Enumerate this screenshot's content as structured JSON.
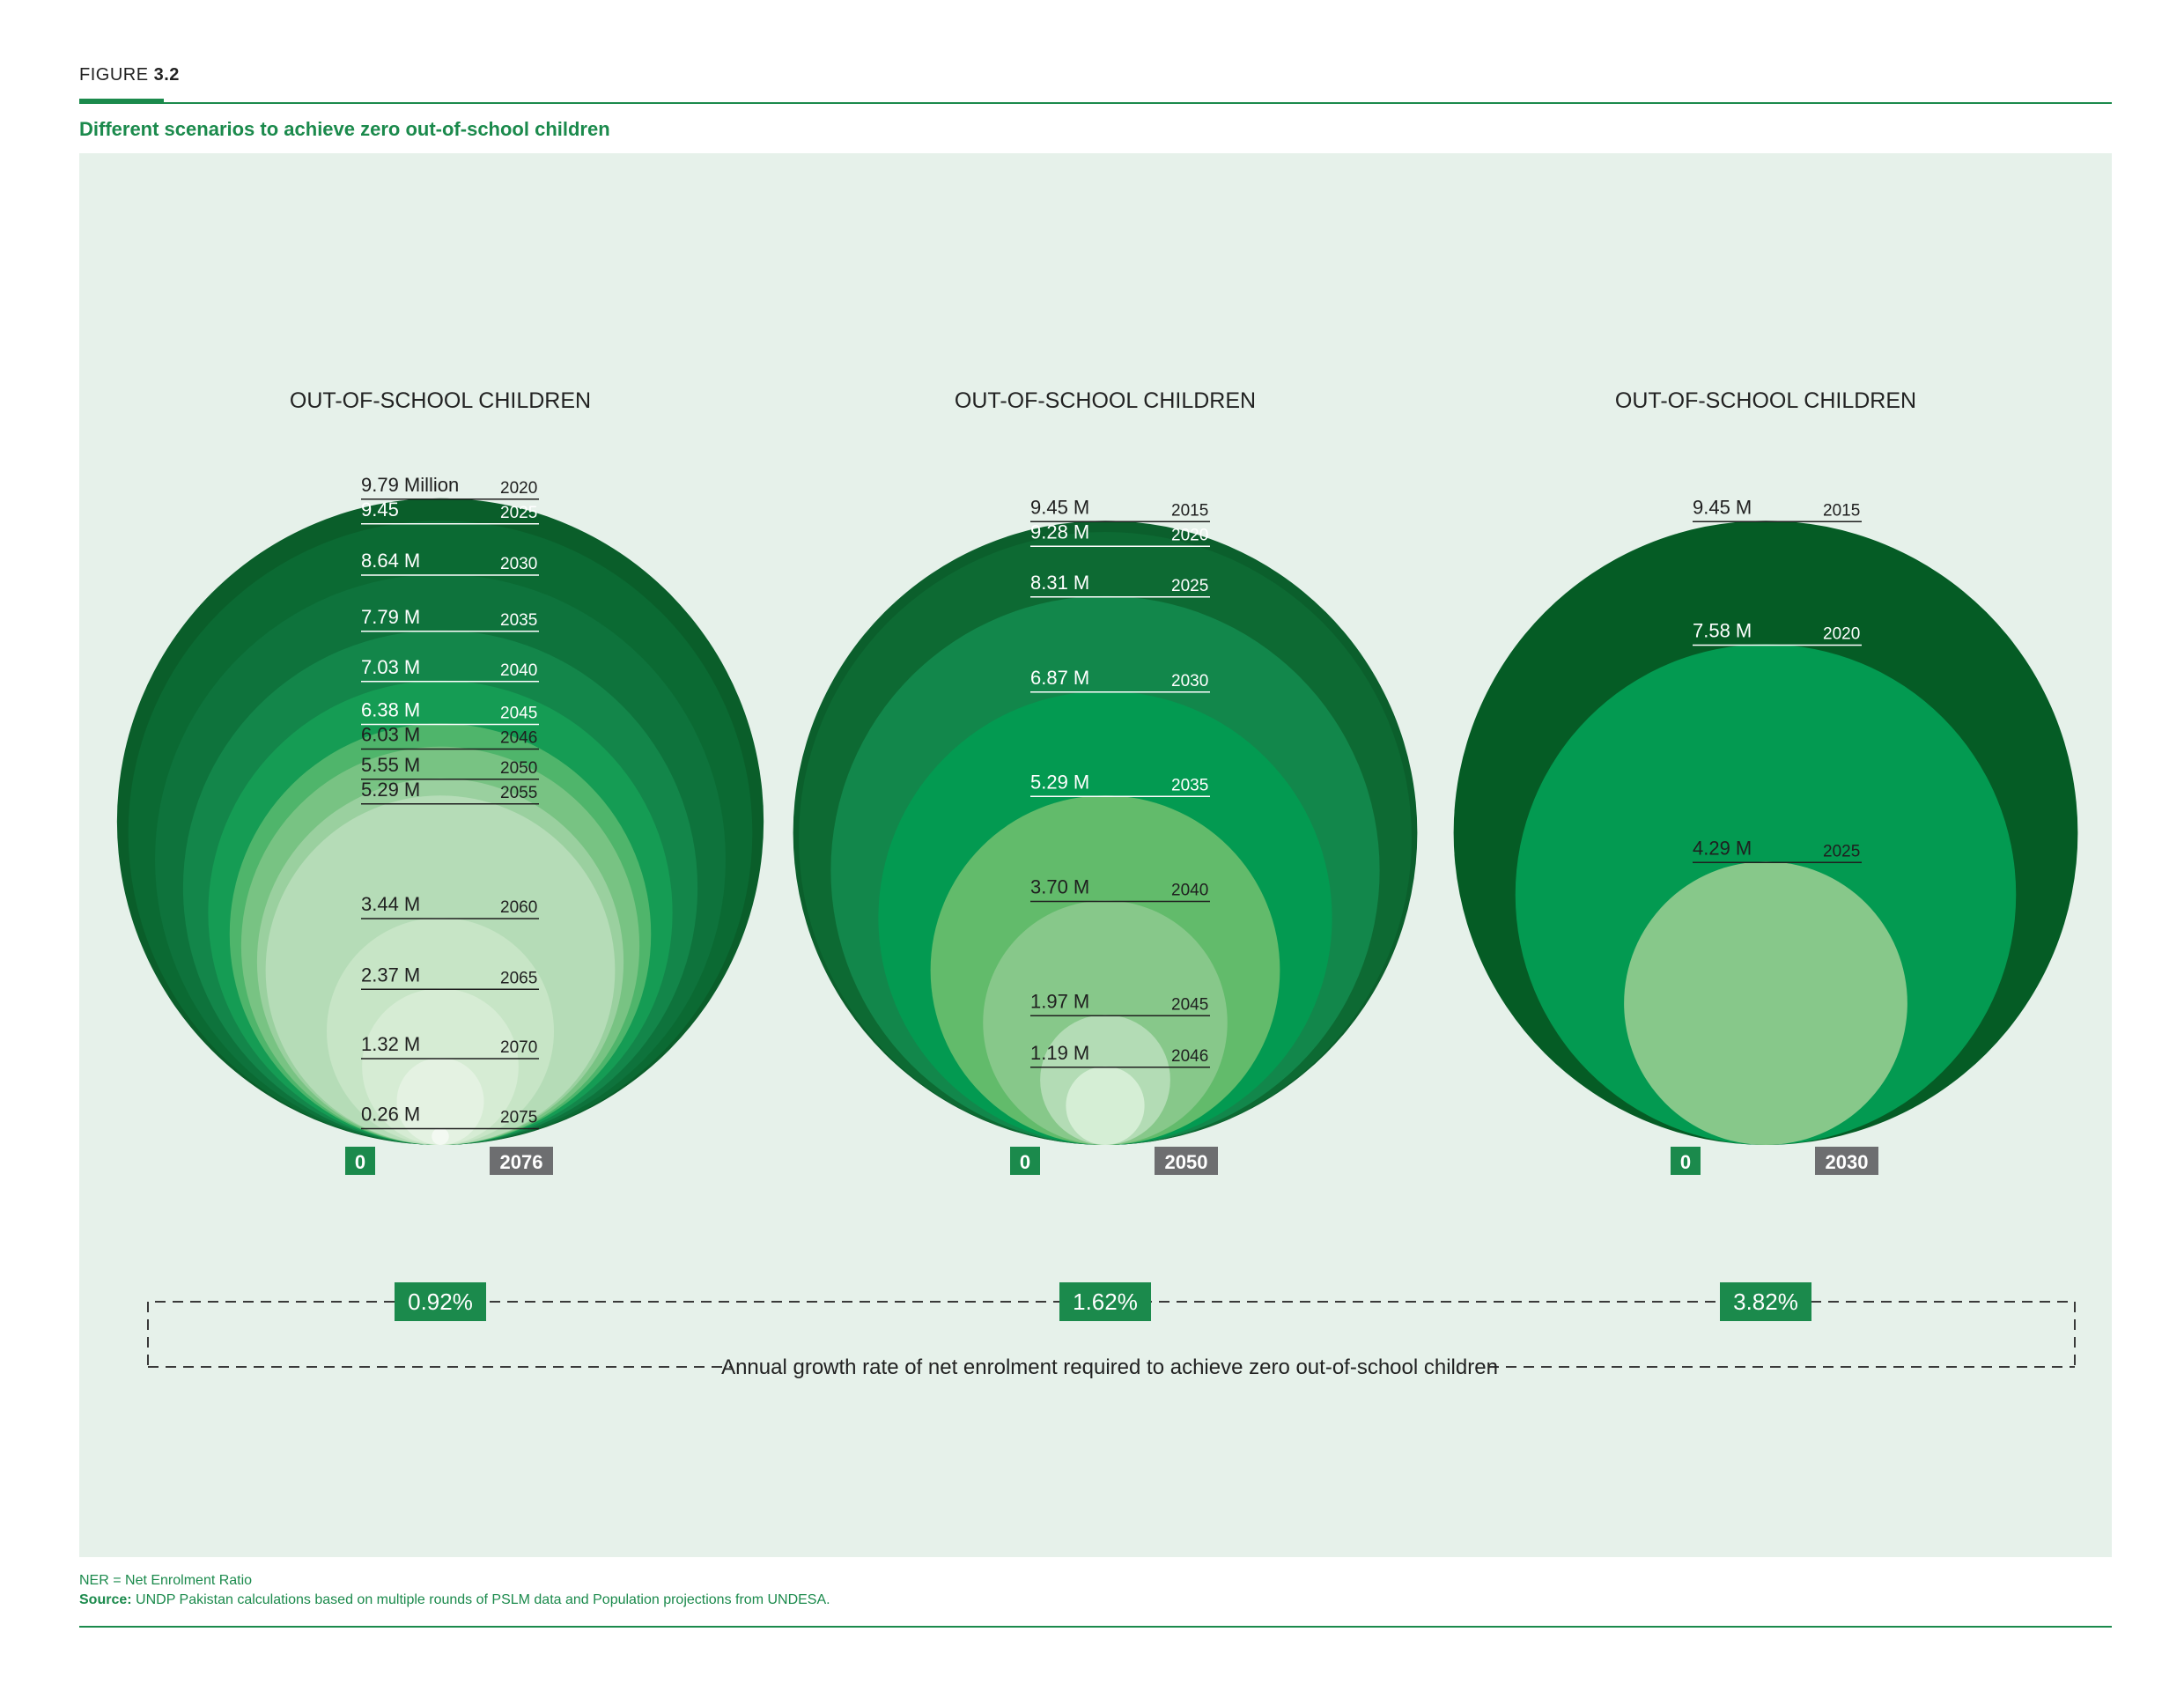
{
  "figure": {
    "prefix": "FIGURE ",
    "number": "3.2",
    "title": "Different scenarios to achieve zero out-of-school children"
  },
  "colors": {
    "accent": "#1b8a4c",
    "panel": "#e6f1ea",
    "gray_badge": "#6d6e70"
  },
  "chart_data": {
    "type": "nested-circles",
    "growth_note": "Annual growth rate of net enrolment required to achieve zero out-of-school children",
    "scenarios": [
      {
        "title": "OUT-OF-SCHOOL CHILDREN",
        "growth_rate": "0.92%",
        "end_value": "0",
        "end_year": "2076",
        "points": [
          {
            "value": 9.79,
            "label": "9.79 Million",
            "year": "2020"
          },
          {
            "value": 9.45,
            "label": "9.45",
            "year": "2025"
          },
          {
            "value": 8.64,
            "label": "8.64 M",
            "year": "2030"
          },
          {
            "value": 7.79,
            "label": "7.79 M",
            "year": "2035"
          },
          {
            "value": 7.03,
            "label": "7.03 M",
            "year": "2040"
          },
          {
            "value": 6.38,
            "label": "6.38 M",
            "year": "2045"
          },
          {
            "value": 6.03,
            "label": "6.03 M",
            "year": "2046"
          },
          {
            "value": 5.55,
            "label": "5.55 M",
            "year": "2050"
          },
          {
            "value": 5.29,
            "label": "5.29 M",
            "year": "2055"
          },
          {
            "value": 3.44,
            "label": "3.44 M",
            "year": "2060"
          },
          {
            "value": 2.37,
            "label": "2.37 M",
            "year": "2065"
          },
          {
            "value": 1.32,
            "label": "1.32 M",
            "year": "2070"
          },
          {
            "value": 0.26,
            "label": "0.26 M",
            "year": "2075"
          }
        ]
      },
      {
        "title": "OUT-OF-SCHOOL CHILDREN",
        "growth_rate": "1.62%",
        "end_value": "0",
        "end_year": "2050",
        "points": [
          {
            "value": 9.45,
            "label": "9.45 M",
            "year": "2015"
          },
          {
            "value": 9.28,
            "label": "9.28 M",
            "year": "2020"
          },
          {
            "value": 8.31,
            "label": "8.31 M",
            "year": "2025"
          },
          {
            "value": 6.87,
            "label": "6.87 M",
            "year": "2030"
          },
          {
            "value": 5.29,
            "label": "5.29 M",
            "year": "2035"
          },
          {
            "value": 3.7,
            "label": "3.70 M",
            "year": "2040"
          },
          {
            "value": 1.97,
            "label": "1.97 M",
            "year": "2045"
          },
          {
            "value": 1.19,
            "label": "1.19 M",
            "year": "2046"
          }
        ]
      },
      {
        "title": "OUT-OF-SCHOOL CHILDREN",
        "growth_rate": "3.82%",
        "end_value": "0",
        "end_year": "2030",
        "points": [
          {
            "value": 9.45,
            "label": "9.45 M",
            "year": "2015"
          },
          {
            "value": 7.58,
            "label": "7.58 M",
            "year": "2020"
          },
          {
            "value": 4.29,
            "label": "4.29 M",
            "year": "2025"
          }
        ]
      }
    ]
  },
  "footnote": {
    "abbrev": "NER = Net Enrolment Ratio",
    "source_label": "Source:",
    "source_text": " UNDP Pakistan calculations based on multiple rounds of PSLM data and Population projections from UNDESA."
  }
}
